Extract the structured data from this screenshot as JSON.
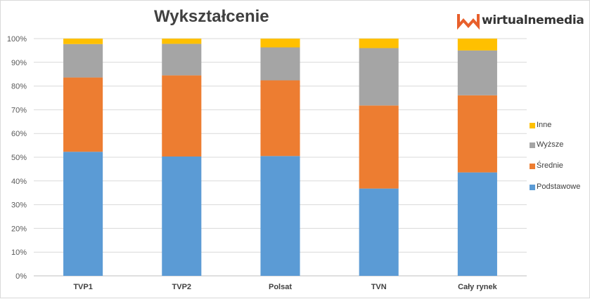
{
  "title": "Wykształcenie",
  "brand": {
    "name": "wirtualnemedia",
    "logo_color": "#e8602c"
  },
  "chart_data": {
    "type": "bar",
    "stacked": true,
    "percent_stacked": true,
    "title": "Wykształcenie",
    "xlabel": "",
    "ylabel": "",
    "categories": [
      "TVP1",
      "TVP2",
      "Polsat",
      "TVN",
      "Cały rynek"
    ],
    "y_ticks": [
      "0%",
      "10%",
      "20%",
      "30%",
      "40%",
      "50%",
      "60%",
      "70%",
      "80%",
      "90%",
      "100%"
    ],
    "ylim": [
      0,
      100
    ],
    "grid": true,
    "legend_position": "right",
    "series": [
      {
        "name": "Podstawowe",
        "color": "#5b9bd5",
        "values": [
          52.3,
          50.3,
          50.5,
          36.8,
          43.6
        ]
      },
      {
        "name": "Średnie",
        "color": "#ed7d31",
        "values": [
          31.3,
          34.2,
          31.9,
          35.0,
          32.5
        ]
      },
      {
        "name": "Wyższe",
        "color": "#a5a5a5",
        "values": [
          14.1,
          13.3,
          13.9,
          24.2,
          18.9
        ]
      },
      {
        "name": "Inne",
        "color": "#ffc000",
        "values": [
          2.3,
          2.2,
          3.7,
          4.0,
          5.0
        ]
      }
    ],
    "legend_order": [
      "Inne",
      "Wyższe",
      "Średnie",
      "Podstawowe"
    ]
  }
}
